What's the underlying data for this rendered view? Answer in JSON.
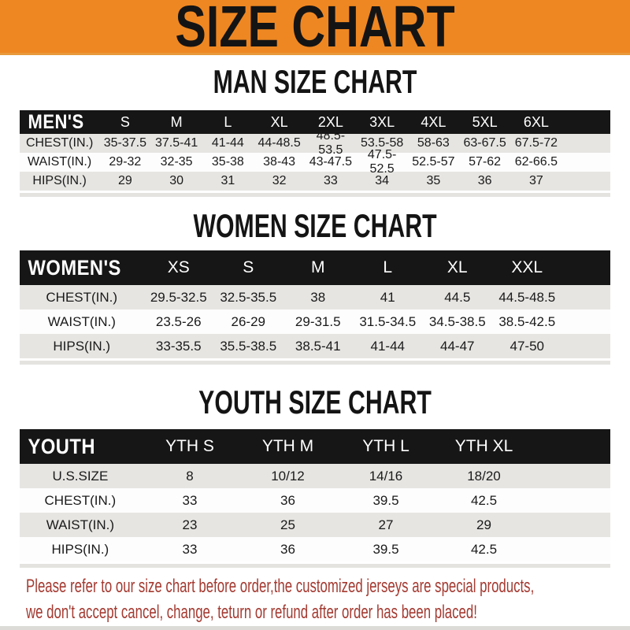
{
  "banner": {
    "title": "SIZE CHART"
  },
  "colors": {
    "banner_bg": "#EE8722",
    "header_bar_bg": "#161616",
    "header_bar_text": "#FFFFFF",
    "alt_row_bg": "#E6E5E2",
    "footer_text": "#A43A31"
  },
  "sections": [
    {
      "title": "MAN SIZE CHART",
      "group_label": "MEN'S",
      "columns": [
        "S",
        "M",
        "L",
        "XL",
        "2XL",
        "3XL",
        "4XL",
        "5XL",
        "6XL"
      ],
      "rows": [
        {
          "label": "CHEST(IN.)",
          "values": [
            "35-37.5",
            "37.5-41",
            "41-44",
            "44-48.5",
            "48.5-53.5",
            "53.5-58",
            "58-63",
            "63-67.5",
            "67.5-72"
          ]
        },
        {
          "label": "WAIST(IN.)",
          "values": [
            "29-32",
            "32-35",
            "35-38",
            "38-43",
            "43-47.5",
            "47.5-52.5",
            "52.5-57",
            "57-62",
            "62-66.5"
          ]
        },
        {
          "label": "HIPS(IN.)",
          "values": [
            "29",
            "30",
            "31",
            "32",
            "33",
            "34",
            "35",
            "36",
            "37"
          ]
        }
      ]
    },
    {
      "title": "WOMEN SIZE CHART",
      "group_label": "WOMEN'S",
      "columns": [
        "XS",
        "S",
        "M",
        "L",
        "XL",
        "XXL"
      ],
      "rows": [
        {
          "label": "CHEST(IN.)",
          "values": [
            "29.5-32.5",
            "32.5-35.5",
            "38",
            "41",
            "44.5",
            "44.5-48.5"
          ]
        },
        {
          "label": "WAIST(IN.)",
          "values": [
            "23.5-26",
            "26-29",
            "29-31.5",
            "31.5-34.5",
            "34.5-38.5",
            "38.5-42.5"
          ]
        },
        {
          "label": "HIPS(IN.)",
          "values": [
            "33-35.5",
            "35.5-38.5",
            "38.5-41",
            "41-44",
            "44-47",
            "47-50"
          ]
        }
      ]
    },
    {
      "title": "YOUTH SIZE CHART",
      "group_label": "YOUTH",
      "columns": [
        "YTH S",
        "YTH M",
        "YTH L",
        "YTH XL"
      ],
      "rows": [
        {
          "label": "U.S.SIZE",
          "values": [
            "8",
            "10/12",
            "14/16",
            "18/20"
          ]
        },
        {
          "label": "CHEST(IN.)",
          "values": [
            "33",
            "36",
            "39.5",
            "42.5"
          ]
        },
        {
          "label": "WAIST(IN.)",
          "values": [
            "23",
            "25",
            "27",
            "29"
          ]
        },
        {
          "label": "HIPS(IN.)",
          "values": [
            "33",
            "36",
            "39.5",
            "42.5"
          ]
        }
      ]
    }
  ],
  "footer": {
    "line1": "Please refer to our size chart before order,the customized jerseys are special products,",
    "line2": "we don't accept cancel, change, teturn or refund after order has been placed!"
  }
}
